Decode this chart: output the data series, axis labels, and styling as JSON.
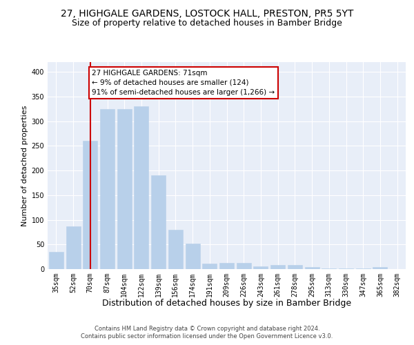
{
  "title": "27, HIGHGALE GARDENS, LOSTOCK HALL, PRESTON, PR5 5YT",
  "subtitle": "Size of property relative to detached houses in Bamber Bridge",
  "xlabel": "Distribution of detached houses by size in Bamber Bridge",
  "ylabel": "Number of detached properties",
  "categories": [
    "35sqm",
    "52sqm",
    "70sqm",
    "87sqm",
    "104sqm",
    "122sqm",
    "139sqm",
    "156sqm",
    "174sqm",
    "191sqm",
    "209sqm",
    "226sqm",
    "243sqm",
    "261sqm",
    "278sqm",
    "295sqm",
    "313sqm",
    "330sqm",
    "347sqm",
    "365sqm",
    "382sqm"
  ],
  "values": [
    35,
    87,
    260,
    325,
    325,
    330,
    190,
    80,
    52,
    11,
    12,
    12,
    6,
    8,
    8,
    4,
    1,
    2,
    1,
    4,
    0
  ],
  "bar_color": "#b8d0ea",
  "bar_edge_color": "#b8d0ea",
  "highlight_index": 2,
  "highlight_line_color": "#cc0000",
  "annotation_text": "27 HIGHGALE GARDENS: 71sqm\n← 9% of detached houses are smaller (124)\n91% of semi-detached houses are larger (1,266) →",
  "annotation_box_facecolor": "#ffffff",
  "annotation_box_edgecolor": "#cc0000",
  "ylim_max": 420,
  "yticks": [
    0,
    50,
    100,
    150,
    200,
    250,
    300,
    350,
    400
  ],
  "footer1": "Contains HM Land Registry data © Crown copyright and database right 2024.",
  "footer2": "Contains public sector information licensed under the Open Government Licence v3.0.",
  "bg_color": "#e8eef8",
  "grid_color": "#ffffff",
  "title_fontsize": 10,
  "subtitle_fontsize": 9,
  "ylabel_fontsize": 8,
  "xlabel_fontsize": 9,
  "tick_fontsize": 7,
  "footer_fontsize": 6,
  "annot_fontsize": 7.5
}
